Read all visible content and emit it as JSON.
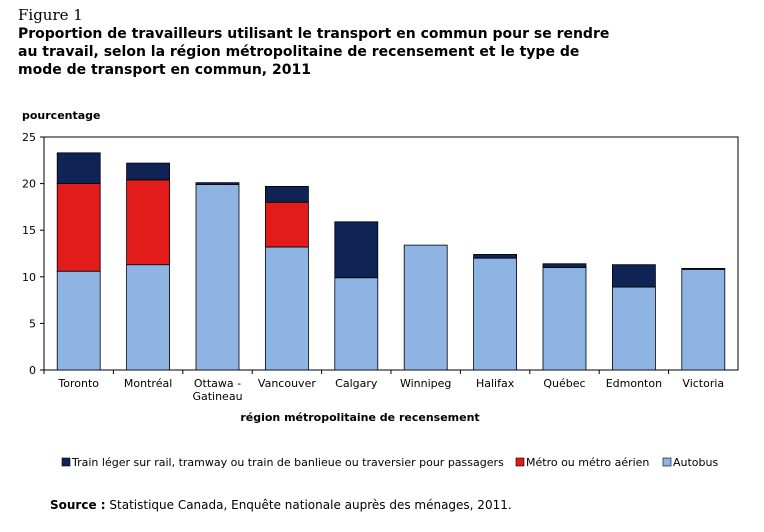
{
  "figure": {
    "label": "Figure 1",
    "title": "Proportion de travailleurs utilisant le transport en commun pour se rendre au travail, selon la région métropolitaine de recensement et le type de mode de transport en commun, 2011"
  },
  "source": {
    "label": "Source :",
    "text": " Statistique Canada, Enquête nationale auprès des ménages, 2011."
  },
  "chart_data": {
    "type": "bar",
    "stacked": true,
    "ylabel": "pourcentage",
    "xlabel": "région métropolitaine de recensement",
    "ylim": [
      0,
      25
    ],
    "yticks": [
      0,
      5,
      10,
      15,
      20,
      25
    ],
    "categories": [
      "Toronto",
      "Montréal",
      "Ottawa - Gatineau",
      "Vancouver",
      "Calgary",
      "Winnipeg",
      "Halifax",
      "Québec",
      "Edmonton",
      "Victoria"
    ],
    "category_lines": [
      [
        "Toronto"
      ],
      [
        "Montréal"
      ],
      [
        "Ottawa -",
        "Gatineau"
      ],
      [
        "Vancouver"
      ],
      [
        "Calgary"
      ],
      [
        "Winnipeg"
      ],
      [
        "Halifax"
      ],
      [
        "Québec"
      ],
      [
        "Edmonton"
      ],
      [
        "Victoria"
      ]
    ],
    "series": [
      {
        "name": "Autobus",
        "color": "#8DB4E2",
        "values": [
          10.6,
          11.3,
          19.9,
          13.2,
          9.9,
          13.4,
          12.0,
          11.0,
          8.9,
          10.8
        ]
      },
      {
        "name": "Métro ou métro aérien",
        "color": "#E31B1B",
        "values": [
          9.4,
          9.1,
          0,
          4.8,
          0,
          0,
          0,
          0,
          0,
          0
        ]
      },
      {
        "name": "Train léger sur rail, tramway ou train de banlieue ou traversier pour passagers",
        "color": "#0F2454",
        "values": [
          3.3,
          1.8,
          0.2,
          1.7,
          6.0,
          0,
          0.4,
          0.4,
          2.4,
          0.1
        ]
      }
    ],
    "legend_order": [
      2,
      1,
      0
    ],
    "grid": false,
    "legend": "bottom"
  }
}
